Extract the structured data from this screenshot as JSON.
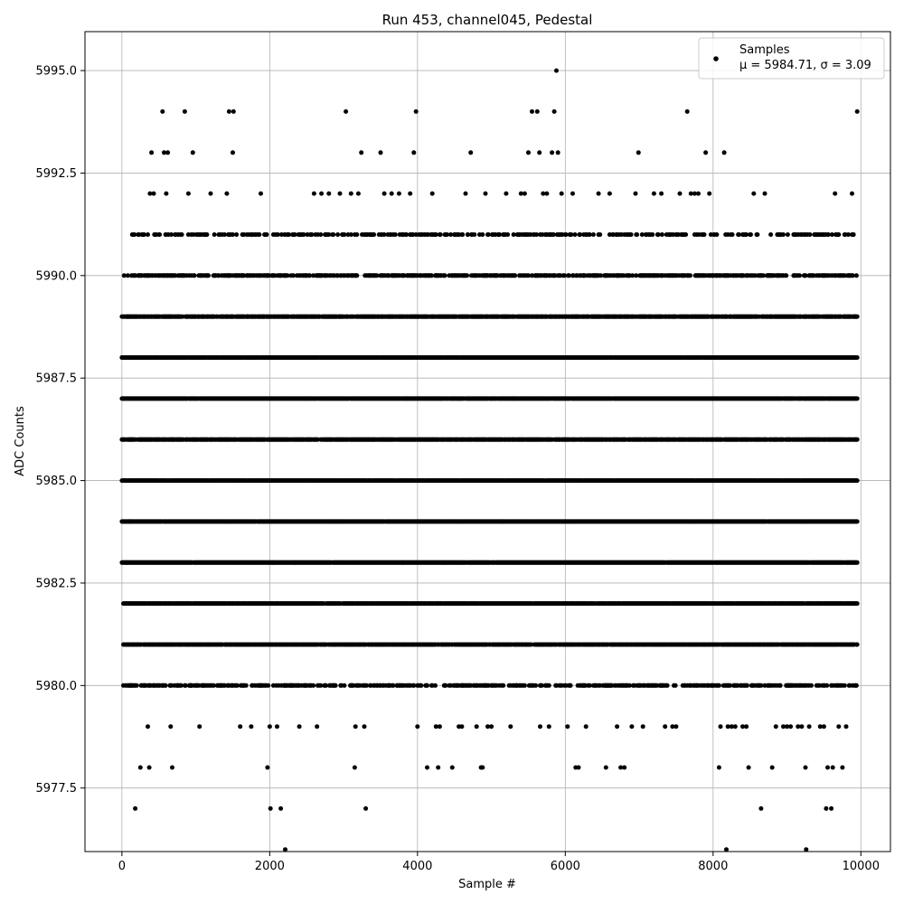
{
  "chart_data": {
    "type": "scatter",
    "title": "Run 453, channel045, Pedestal",
    "xlabel": "Sample #",
    "ylabel": "ADC Counts",
    "xlim": [
      -500,
      10400
    ],
    "ylim": [
      5975.95,
      5995.95
    ],
    "xticks": [
      0,
      2000,
      4000,
      6000,
      8000,
      10000
    ],
    "xtick_labels": [
      "0",
      "2000",
      "4000",
      "6000",
      "8000",
      "10000"
    ],
    "yticks": [
      5977.5,
      5980.0,
      5982.5,
      5985.0,
      5987.5,
      5990.0,
      5992.5,
      5995.0
    ],
    "ytick_labels": [
      "5977.5",
      "5980.0",
      "5982.5",
      "5985.0",
      "5987.5",
      "5990.0",
      "5992.5",
      "5995.0"
    ],
    "grid": true,
    "legend": {
      "position": "top-right",
      "label": "Samples",
      "stats_line": "μ = 5984.71, σ = 3.09"
    },
    "color": "#000000",
    "series": [
      {
        "name": "Samples",
        "points": [
          [
            0,
            5988
          ],
          [
            20,
            5987
          ],
          [
            40,
            5985
          ],
          [
            60,
            5983
          ],
          [
            80,
            5989
          ],
          [
            100,
            5984
          ],
          [
            120,
            5986
          ],
          [
            140,
            5981
          ],
          [
            160,
            5982
          ],
          [
            180,
            5977
          ],
          [
            200,
            5988
          ],
          [
            230,
            5990
          ],
          [
            250,
            5978
          ],
          [
            280,
            5991
          ],
          [
            320,
            5980
          ],
          [
            350,
            5979
          ],
          [
            370,
            5978
          ],
          [
            380,
            5992
          ],
          [
            400,
            5993
          ],
          [
            430,
            5992
          ],
          [
            460,
            5991
          ],
          [
            500,
            5990
          ],
          [
            550,
            5994
          ],
          [
            570,
            5993
          ],
          [
            600,
            5992
          ],
          [
            620,
            5993
          ],
          [
            640,
            5989
          ],
          [
            660,
            5979
          ],
          [
            680,
            5978
          ],
          [
            700,
            5986
          ],
          [
            820,
            5990
          ],
          [
            850,
            5994
          ],
          [
            900,
            5992
          ],
          [
            930,
            5980
          ],
          [
            960,
            5993
          ],
          [
            1000,
            5981
          ],
          [
            1050,
            5979
          ],
          [
            1100,
            5980
          ],
          [
            1150,
            5991
          ],
          [
            1200,
            5992
          ],
          [
            1300,
            5990
          ],
          [
            1380,
            5985
          ],
          [
            1420,
            5992
          ],
          [
            1450,
            5994
          ],
          [
            1500,
            5993
          ],
          [
            1510,
            5994
          ],
          [
            1550,
            5991
          ],
          [
            1600,
            5979
          ],
          [
            1650,
            5980
          ],
          [
            1700,
            5989
          ],
          [
            1750,
            5979
          ],
          [
            1800,
            5980
          ],
          [
            1850,
            5991
          ],
          [
            1880,
            5992
          ],
          [
            1920,
            5989
          ],
          [
            1970,
            5978
          ],
          [
            2000,
            5979
          ],
          [
            2010,
            5977
          ],
          [
            2050,
            5983
          ],
          [
            2100,
            5979
          ],
          [
            2150,
            5977
          ],
          [
            2210,
            5976
          ],
          [
            2250,
            5991
          ],
          [
            2300,
            5980
          ],
          [
            2350,
            5983
          ],
          [
            2400,
            5979
          ],
          [
            2450,
            5990
          ],
          [
            2500,
            5987
          ],
          [
            2550,
            5985
          ],
          [
            2600,
            5992
          ],
          [
            2640,
            5979
          ],
          [
            2700,
            5992
          ],
          [
            2750,
            5991
          ],
          [
            2800,
            5992
          ],
          [
            2850,
            5982
          ],
          [
            2900,
            5984
          ],
          [
            2950,
            5992
          ],
          [
            3000,
            5991
          ],
          [
            3030,
            5994
          ],
          [
            3100,
            5992
          ],
          [
            3150,
            5978
          ],
          [
            3160,
            5979
          ],
          [
            3200,
            5992
          ],
          [
            3240,
            5993
          ],
          [
            3280,
            5979
          ],
          [
            3300,
            5977
          ],
          [
            3350,
            5990
          ],
          [
            3400,
            5986
          ],
          [
            3450,
            5980
          ],
          [
            3500,
            5993
          ],
          [
            3550,
            5992
          ],
          [
            3600,
            5991
          ],
          [
            3650,
            5992
          ],
          [
            3700,
            5991
          ],
          [
            3750,
            5992
          ],
          [
            3800,
            5983
          ],
          [
            3850,
            5987
          ],
          [
            3900,
            5992
          ],
          [
            3950,
            5993
          ],
          [
            3980,
            5994
          ],
          [
            4000,
            5979
          ],
          [
            4050,
            5991
          ],
          [
            4100,
            5988
          ],
          [
            4130,
            5978
          ],
          [
            4200,
            5992
          ],
          [
            4250,
            5979
          ],
          [
            4280,
            5978
          ],
          [
            4300,
            5979
          ],
          [
            4350,
            5983
          ],
          [
            4400,
            5991
          ],
          [
            4470,
            5978
          ],
          [
            4500,
            5991
          ],
          [
            4560,
            5979
          ],
          [
            4600,
            5979
          ],
          [
            4650,
            5992
          ],
          [
            4680,
            5991
          ],
          [
            4720,
            5993
          ],
          [
            4800,
            5979
          ],
          [
            4860,
            5978
          ],
          [
            4880,
            5978
          ],
          [
            4920,
            5992
          ],
          [
            4950,
            5979
          ],
          [
            5000,
            5979
          ],
          [
            5050,
            5991
          ],
          [
            5100,
            5991
          ],
          [
            5150,
            5984
          ],
          [
            5200,
            5992
          ],
          [
            5260,
            5979
          ],
          [
            5300,
            5987
          ],
          [
            5350,
            5980
          ],
          [
            5400,
            5992
          ],
          [
            5450,
            5992
          ],
          [
            5500,
            5993
          ],
          [
            5550,
            5994
          ],
          [
            5580,
            5991
          ],
          [
            5620,
            5994
          ],
          [
            5650,
            5993
          ],
          [
            5660,
            5979
          ],
          [
            5700,
            5992
          ],
          [
            5750,
            5992
          ],
          [
            5780,
            5979
          ],
          [
            5800,
            5991
          ],
          [
            5820,
            5993
          ],
          [
            5850,
            5994
          ],
          [
            5880,
            5995
          ],
          [
            5900,
            5993
          ],
          [
            5950,
            5992
          ],
          [
            6000,
            5991
          ],
          [
            6030,
            5979
          ],
          [
            6100,
            5992
          ],
          [
            6140,
            5978
          ],
          [
            6180,
            5978
          ],
          [
            6200,
            5991
          ],
          [
            6250,
            5990
          ],
          [
            6280,
            5979
          ],
          [
            6350,
            5985
          ],
          [
            6450,
            5992
          ],
          [
            6550,
            5978
          ],
          [
            6600,
            5992
          ],
          [
            6700,
            5979
          ],
          [
            6750,
            5978
          ],
          [
            6800,
            5978
          ],
          [
            6850,
            5991
          ],
          [
            6900,
            5979
          ],
          [
            6950,
            5992
          ],
          [
            6990,
            5993
          ],
          [
            7050,
            5979
          ],
          [
            7100,
            5990
          ],
          [
            7150,
            5989
          ],
          [
            7200,
            5992
          ],
          [
            7250,
            5991
          ],
          [
            7300,
            5992
          ],
          [
            7350,
            5979
          ],
          [
            7400,
            5991
          ],
          [
            7450,
            5979
          ],
          [
            7500,
            5979
          ],
          [
            7550,
            5992
          ],
          [
            7600,
            5990
          ],
          [
            7650,
            5994
          ],
          [
            7700,
            5992
          ],
          [
            7750,
            5992
          ],
          [
            7800,
            5992
          ],
          [
            7850,
            5991
          ],
          [
            7900,
            5993
          ],
          [
            7950,
            5992
          ],
          [
            8000,
            5990
          ],
          [
            8050,
            5991
          ],
          [
            8080,
            5978
          ],
          [
            8100,
            5979
          ],
          [
            8150,
            5993
          ],
          [
            8180,
            5976
          ],
          [
            8200,
            5979
          ],
          [
            8250,
            5979
          ],
          [
            8300,
            5979
          ],
          [
            8350,
            5991
          ],
          [
            8400,
            5979
          ],
          [
            8450,
            5979
          ],
          [
            8480,
            5978
          ],
          [
            8500,
            5990
          ],
          [
            8550,
            5992
          ],
          [
            8600,
            5991
          ],
          [
            8650,
            5977
          ],
          [
            8700,
            5992
          ],
          [
            8750,
            5990
          ],
          [
            8800,
            5978
          ],
          [
            8850,
            5979
          ],
          [
            8900,
            5991
          ],
          [
            8950,
            5979
          ],
          [
            9000,
            5979
          ],
          [
            9050,
            5979
          ],
          [
            9100,
            5991
          ],
          [
            9150,
            5979
          ],
          [
            9200,
            5979
          ],
          [
            9250,
            5978
          ],
          [
            9260,
            5976
          ],
          [
            9300,
            5979
          ],
          [
            9350,
            5990
          ],
          [
            9400,
            5991
          ],
          [
            9450,
            5979
          ],
          [
            9500,
            5979
          ],
          [
            9530,
            5977
          ],
          [
            9550,
            5978
          ],
          [
            9600,
            5977
          ],
          [
            9620,
            5978
          ],
          [
            9650,
            5992
          ],
          [
            9700,
            5979
          ],
          [
            9750,
            5978
          ],
          [
            9800,
            5979
          ],
          [
            9850,
            5990
          ],
          [
            9880,
            5992
          ],
          [
            9900,
            5991
          ],
          [
            9920,
            5989
          ],
          [
            9950,
            5994
          ]
        ],
        "dense_rows": [
          {
            "y": 5990,
            "from": 20,
            "to": 9940,
            "density": 0.55
          },
          {
            "y": 5989,
            "from": 0,
            "to": 9950,
            "density": 0.85
          },
          {
            "y": 5988,
            "from": 0,
            "to": 9950,
            "density": 0.98
          },
          {
            "y": 5987,
            "from": 0,
            "to": 9950,
            "density": 0.98
          },
          {
            "y": 5986,
            "from": 0,
            "to": 9950,
            "density": 0.9
          },
          {
            "y": 5985,
            "from": 0,
            "to": 9950,
            "density": 0.98
          },
          {
            "y": 5984,
            "from": 0,
            "to": 9950,
            "density": 0.99
          },
          {
            "y": 5983,
            "from": 0,
            "to": 9950,
            "density": 0.99
          },
          {
            "y": 5982,
            "from": 20,
            "to": 9950,
            "density": 0.95
          },
          {
            "y": 5981,
            "from": 20,
            "to": 9950,
            "density": 0.85
          },
          {
            "y": 5980,
            "from": 20,
            "to": 9950,
            "density": 0.45
          },
          {
            "y": 5991,
            "from": 50,
            "to": 9940,
            "density": 0.3
          }
        ]
      }
    ]
  }
}
